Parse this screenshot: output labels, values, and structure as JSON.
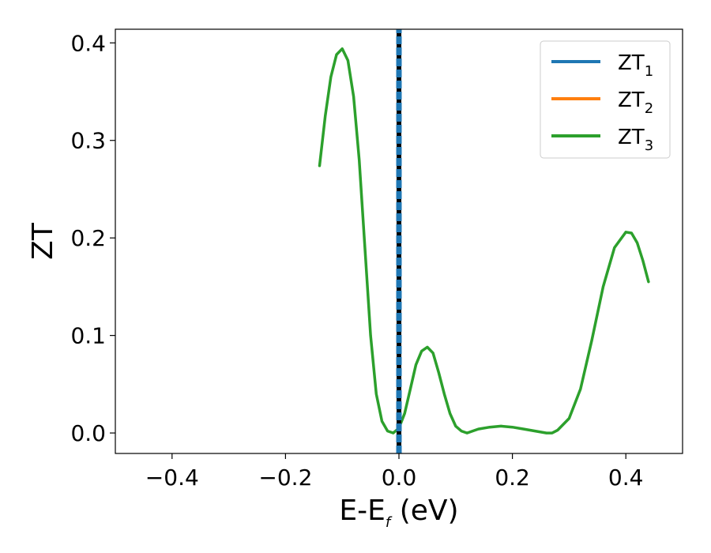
{
  "chart_data": {
    "type": "line",
    "xlabel": {
      "main": "E-E",
      "sub": "f",
      "unit": " (eV)"
    },
    "ylabel": "ZT",
    "xlim": [
      -0.5,
      0.5
    ],
    "ylim": [
      -0.021,
      0.414
    ],
    "xticks": [
      -0.4,
      -0.2,
      0.0,
      0.2,
      0.4
    ],
    "xtick_labels": [
      "−0.4",
      "−0.2",
      "0.0",
      "0.2",
      "0.4"
    ],
    "yticks": [
      0.0,
      0.1,
      0.2,
      0.3,
      0.4
    ],
    "ytick_labels": [
      "0.0",
      "0.1",
      "0.2",
      "0.3",
      "0.4"
    ],
    "grid": false,
    "legend_position": "top-right",
    "vline": {
      "x": 0.0,
      "color": "#000000",
      "style": "dashed"
    },
    "series": [
      {
        "name": "ZT",
        "sub": "1",
        "color": "#1f77b4",
        "style": "dashed",
        "points": [
          [
            0.0,
            -0.021
          ],
          [
            0.0,
            0.414
          ]
        ]
      },
      {
        "name": "ZT",
        "sub": "2",
        "color": "#ff7f0e",
        "style": "solid",
        "points": []
      },
      {
        "name": "ZT",
        "sub": "3",
        "color": "#2ca02c",
        "style": "solid",
        "points": [
          [
            -0.14,
            0.274
          ],
          [
            -0.13,
            0.325
          ],
          [
            -0.12,
            0.365
          ],
          [
            -0.11,
            0.388
          ],
          [
            -0.1,
            0.394
          ],
          [
            -0.09,
            0.382
          ],
          [
            -0.08,
            0.345
          ],
          [
            -0.07,
            0.28
          ],
          [
            -0.06,
            0.19
          ],
          [
            -0.05,
            0.1
          ],
          [
            -0.04,
            0.04
          ],
          [
            -0.03,
            0.012
          ],
          [
            -0.02,
            0.002
          ],
          [
            -0.01,
            0.0
          ],
          [
            0.0,
            0.005
          ],
          [
            0.01,
            0.02
          ],
          [
            0.02,
            0.045
          ],
          [
            0.03,
            0.07
          ],
          [
            0.04,
            0.084
          ],
          [
            0.05,
            0.088
          ],
          [
            0.06,
            0.082
          ],
          [
            0.07,
            0.062
          ],
          [
            0.08,
            0.04
          ],
          [
            0.09,
            0.02
          ],
          [
            0.1,
            0.007
          ],
          [
            0.11,
            0.002
          ],
          [
            0.12,
            0.0
          ],
          [
            0.13,
            0.002
          ],
          [
            0.14,
            0.004
          ],
          [
            0.16,
            0.006
          ],
          [
            0.18,
            0.007
          ],
          [
            0.2,
            0.006
          ],
          [
            0.22,
            0.004
          ],
          [
            0.24,
            0.002
          ],
          [
            0.26,
            0.0
          ],
          [
            0.27,
            0.0
          ],
          [
            0.28,
            0.003
          ],
          [
            0.3,
            0.015
          ],
          [
            0.32,
            0.045
          ],
          [
            0.34,
            0.095
          ],
          [
            0.36,
            0.15
          ],
          [
            0.38,
            0.19
          ],
          [
            0.4,
            0.206
          ],
          [
            0.41,
            0.205
          ],
          [
            0.42,
            0.195
          ],
          [
            0.43,
            0.177
          ],
          [
            0.44,
            0.155
          ]
        ]
      }
    ]
  }
}
